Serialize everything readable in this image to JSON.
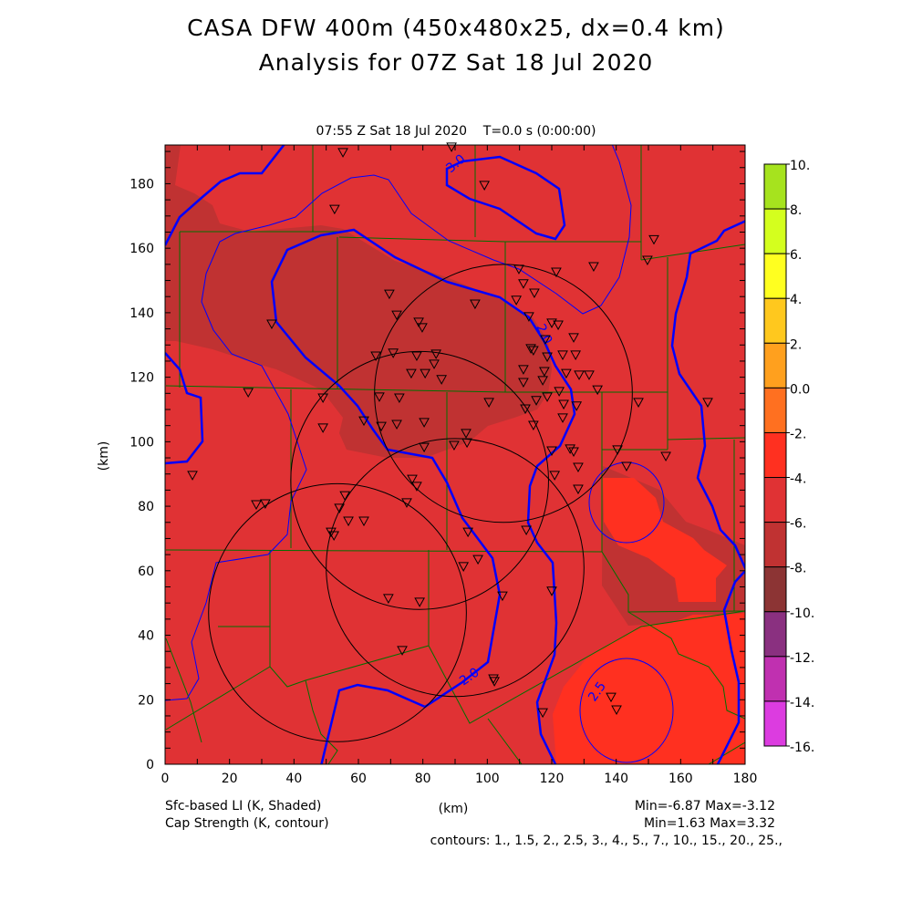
{
  "title": {
    "line1": "CASA DFW 400m (450x480x25, dx=0.4 km)",
    "line2": "Analysis for 07Z Sat 18 Jul 2020",
    "time_label": "07:55 Z Sat 18 Jul 2020    T=0.0 s (0:00:00)"
  },
  "axes": {
    "x_label": "(km)",
    "y_label": "(km)",
    "x_ticks": [
      0,
      20,
      40,
      60,
      80,
      100,
      120,
      140,
      160,
      180
    ],
    "y_ticks": [
      0,
      20,
      40,
      60,
      80,
      100,
      120,
      140,
      160,
      180
    ],
    "x_range": [
      0,
      180
    ],
    "y_range": [
      0,
      192
    ]
  },
  "footer": {
    "shaded_field": "Sfc-based LI (K, Shaded)",
    "contour_field": "Cap Strength (K, contour)",
    "shaded_minmax": "Min=-6.87 Max=-3.12",
    "contour_minmax": "Min=1.63 Max=3.32",
    "contours": "contours: 1., 1.5, 2., 2.5, 3., 4., 5., 7., 10., 15., 20., 25.,"
  },
  "contour_labels": [
    "3.0",
    "2.0",
    "2.0",
    "2.5"
  ],
  "colorbar": {
    "labels": [
      "10.",
      "8.",
      "6.",
      "4.",
      "2.",
      "0.0",
      "-2.",
      "-4.",
      "-6.",
      "-8.",
      "-10.",
      "-12.",
      "-14.",
      "-16."
    ],
    "colors": [
      "#a6e31e",
      "#d4ff1e",
      "#ffff20",
      "#ffc81e",
      "#ffa01e",
      "#ff7020",
      "#ff3020",
      "#e03234",
      "#c03232",
      "#8c3434",
      "#8a3080",
      "#c030b0",
      "#dc3ce0"
    ]
  },
  "colors": {
    "base": "#e03234",
    "dark": "#c03232",
    "bright": "#ff3020",
    "contour": "#0000ff",
    "county": "#007000"
  },
  "radar_rings": [
    {
      "x": 105,
      "y": 115,
      "r": 40
    },
    {
      "x": 79,
      "y": 88,
      "r": 40
    },
    {
      "x": 90,
      "y": 61,
      "r": 40
    },
    {
      "x": 53.5,
      "y": 47,
      "r": 40
    }
  ],
  "stations": [
    [
      55.2,
      189.5
    ],
    [
      88.9,
      191.2
    ],
    [
      99.1,
      179.3
    ],
    [
      52.6,
      171.9
    ],
    [
      151.7,
      162.5
    ],
    [
      149.7,
      156.1
    ],
    [
      133.0,
      154.1
    ],
    [
      109.8,
      153.3
    ],
    [
      121.4,
      152.4
    ],
    [
      111.2,
      148.8
    ],
    [
      114.6,
      145.9
    ],
    [
      69.6,
      145.6
    ],
    [
      96.2,
      142.5
    ],
    [
      109.0,
      143.7
    ],
    [
      33.1,
      136.3
    ],
    [
      71.9,
      139.1
    ],
    [
      78.7,
      136.9
    ],
    [
      79.8,
      135.2
    ],
    [
      120.0,
      136.6
    ],
    [
      112.9,
      138.6
    ],
    [
      122.0,
      136.0
    ],
    [
      118.0,
      131.5
    ],
    [
      126.8,
      132.1
    ],
    [
      113.5,
      128.7
    ],
    [
      65.4,
      126.4
    ],
    [
      70.8,
      127.3
    ],
    [
      78.1,
      126.4
    ],
    [
      84.1,
      127.0
    ],
    [
      83.5,
      123.9
    ],
    [
      114.3,
      128.1
    ],
    [
      123.4,
      126.7
    ],
    [
      118.6,
      126.1
    ],
    [
      127.4,
      126.7
    ],
    [
      76.4,
      121.0
    ],
    [
      80.7,
      121.0
    ],
    [
      85.8,
      119.1
    ],
    [
      111.2,
      122.2
    ],
    [
      117.7,
      121.6
    ],
    [
      124.5,
      121.0
    ],
    [
      128.5,
      120.5
    ],
    [
      131.6,
      120.5
    ],
    [
      117.2,
      118.8
    ],
    [
      111.2,
      118.2
    ],
    [
      122.3,
      115.4
    ],
    [
      118.6,
      113.7
    ],
    [
      127.7,
      110.9
    ],
    [
      123.7,
      111.4
    ],
    [
      134.2,
      115.9
    ],
    [
      25.8,
      115.1
    ],
    [
      49.0,
      113.4
    ],
    [
      66.5,
      113.7
    ],
    [
      72.7,
      113.4
    ],
    [
      100.5,
      112.0
    ],
    [
      115.2,
      112.6
    ],
    [
      111.8,
      110.0
    ],
    [
      123.4,
      107.2
    ],
    [
      146.9,
      112.0
    ],
    [
      168.4,
      112.0
    ],
    [
      114.3,
      104.9
    ],
    [
      61.7,
      106.3
    ],
    [
      67.1,
      104.6
    ],
    [
      71.9,
      105.2
    ],
    [
      80.4,
      105.8
    ],
    [
      49.0,
      104.1
    ],
    [
      93.4,
      102.4
    ],
    [
      93.7,
      99.5
    ],
    [
      89.7,
      98.7
    ],
    [
      80.4,
      98.1
    ],
    [
      125.7,
      97.6
    ],
    [
      120.0,
      97.0
    ],
    [
      126.8,
      96.7
    ],
    [
      140.4,
      97.3
    ],
    [
      155.4,
      95.3
    ],
    [
      8.5,
      89.4
    ],
    [
      143.2,
      92.2
    ],
    [
      128.2,
      91.9
    ],
    [
      120.9,
      89.4
    ],
    [
      76.7,
      88.2
    ],
    [
      78.1,
      86.0
    ],
    [
      128.2,
      85.1
    ],
    [
      31.1,
      80.6
    ],
    [
      28.3,
      80.3
    ],
    [
      75.0,
      80.9
    ],
    [
      55.8,
      83.1
    ],
    [
      54.1,
      79.2
    ],
    [
      56.9,
      75.2
    ],
    [
      61.7,
      75.2
    ],
    [
      51.5,
      71.8
    ],
    [
      52.4,
      70.7
    ],
    [
      94.0,
      71.8
    ],
    [
      112.1,
      72.4
    ],
    [
      97.1,
      63.3
    ],
    [
      92.6,
      61.1
    ],
    [
      120.0,
      53.5
    ],
    [
      104.7,
      52.0
    ],
    [
      69.3,
      51.2
    ],
    [
      79.0,
      50.1
    ],
    [
      73.6,
      35.1
    ],
    [
      101.9,
      26.3
    ],
    [
      102.2,
      25.5
    ],
    [
      138.4,
      20.6
    ],
    [
      140.1,
      16.7
    ],
    [
      117.2,
      15.8
    ]
  ]
}
